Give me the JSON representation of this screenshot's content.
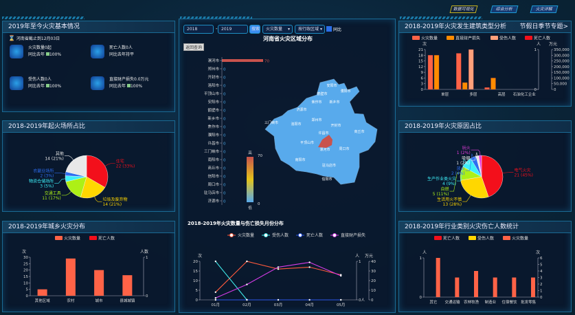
{
  "nav": [
    "数据可视化",
    "综合分析",
    "火灾详解"
  ],
  "basic": {
    "title": "2019年至今火灾基本情况",
    "note": "河南省截止到12月03日",
    "items": [
      {
        "icon": "fire-icon",
        "label": "火灾数量0起",
        "compare": "同比去年",
        "pct": "100%"
      },
      {
        "icon": "skull-icon",
        "label": "死亡人数0人",
        "compare": "同比去年持平",
        "pct": ""
      },
      {
        "icon": "injured-person-icon",
        "label": "受伤人数0人",
        "compare": "同比去年",
        "pct": "100%"
      },
      {
        "icon": "money-loss-icon",
        "label": "直接财产损失0.0万元",
        "compare": "同比去年",
        "pct": "100%"
      }
    ]
  },
  "place": {
    "title": "2018-2019年起火场所占比",
    "chart_data": {
      "type": "pie",
      "slices": [
        {
          "name": "住宅",
          "value": 22,
          "pct": "33%",
          "color": "#f30f1b"
        },
        {
          "name": "垃圾及废弃物",
          "value": 14,
          "pct": "21%",
          "color": "#ffd700"
        },
        {
          "name": "交通工具",
          "value": 11,
          "pct": "17%",
          "color": "#adf016"
        },
        {
          "name": "物资仓储场所",
          "value": 3,
          "pct": "5%",
          "color": "#3ef0fa"
        },
        {
          "name": "农副业场所",
          "value": 2,
          "pct": "3%",
          "color": "#2d6df0"
        },
        {
          "name": "其他",
          "value": 14,
          "pct": "21%",
          "color": "#e8e8e8"
        }
      ]
    }
  },
  "rural": {
    "title": "2018-2019年城乡火灾分布",
    "chart_data": {
      "type": "bar",
      "categories": [
        "其他区域",
        "农村",
        "城市",
        "县城城镇"
      ],
      "series": [
        {
          "name": "火灾数量",
          "values": [
            5,
            29,
            20,
            16
          ],
          "color": "#ff6347"
        },
        {
          "name": "死亡人数",
          "values": [
            0,
            0,
            0,
            0
          ],
          "color": "#f30f1b"
        }
      ],
      "ylabel": "次",
      "y2label": "人数",
      "ylim": [
        0,
        30
      ],
      "yticks": [
        0,
        5,
        10,
        15,
        20,
        25,
        30
      ],
      "y2lim": [
        0,
        1
      ]
    }
  },
  "controls": {
    "from": "2018",
    "sep": "-",
    "to": "2019",
    "search": "搜索",
    "metric": "火灾数量",
    "sort": "按行政区域",
    "compare": "同比"
  },
  "map": {
    "title": "河南省火灾区域分布",
    "back": "返回查询",
    "visual_high": "高",
    "visual_low": "低",
    "max": "70",
    "min": "0",
    "cities": [
      "漯河市",
      "郑州市",
      "开封市",
      "洛阳市",
      "平顶山市",
      "安阳市",
      "鹤壁市",
      "新乡市",
      "焦作市",
      "濮阳市",
      "许昌市",
      "三门峡市",
      "南阳市",
      "商丘市",
      "信阳市",
      "周口市",
      "驻马店市",
      "济源市"
    ],
    "values": [
      70,
      0,
      0,
      0,
      0,
      0,
      0,
      0,
      0,
      0,
      0,
      0,
      0,
      0,
      0,
      0,
      0,
      0
    ],
    "map_labels": [
      "安阳市",
      "鹤壁市",
      "濮阳市",
      "焦作市",
      "新乡市",
      "济源市",
      "三门峡市",
      "洛阳市",
      "郑州市",
      "开封市",
      "商丘市",
      "许昌市",
      "平顶山市",
      "漯河市",
      "周口市",
      "南阳市",
      "驻马店市",
      "信阳市"
    ],
    "low_color": "#58aaec",
    "high_color": "#c9534d"
  },
  "monthly": {
    "title": "2018-2019年火灾数量与伤亡损失月份分布",
    "chart_data": {
      "type": "line",
      "categories": [
        "01月",
        "02月",
        "03月",
        "04月",
        "05月"
      ],
      "series": [
        {
          "name": "火灾数量",
          "axis": "次",
          "values": [
            4,
            20,
            16,
            17,
            13
          ],
          "color": "#ff5a3c"
        },
        {
          "name": "受伤人数",
          "axis": "人",
          "values": [
            1,
            0,
            null,
            null,
            null
          ],
          "color": "#3ee8e8"
        },
        {
          "name": "死亡人数",
          "axis": "人",
          "values": [
            0,
            0,
            0,
            0,
            0
          ],
          "color": "#2a56e8"
        },
        {
          "name": "直接财产损失",
          "axis": "万元",
          "values": [
            2,
            16,
            34,
            39,
            25
          ],
          "color": "#d63ce8"
        }
      ],
      "ylabel": "次",
      "y2label": "人",
      "y3label": "万元",
      "ylim": [
        0,
        20
      ],
      "yticks": [
        0,
        5,
        10,
        15,
        20
      ],
      "y2lim": [
        0,
        1
      ],
      "y3lim": [
        0,
        40
      ],
      "y3ticks": [
        0,
        10,
        20,
        30,
        40
      ],
      "y2ticklabels": [
        "0人",
        "1"
      ]
    }
  },
  "building": {
    "title": "2018-2019年火灾发生建筑类型分析",
    "link": "节假日季节专题>",
    "chart_data": {
      "type": "bar",
      "categories": [
        "单层",
        "多层",
        "高层",
        "石油化工企业"
      ],
      "series": [
        {
          "name": "火灾数量",
          "axis": "次",
          "values": [
            18,
            19,
            1,
            0
          ],
          "color": "#ff6347"
        },
        {
          "name": "直接财产损失",
          "axis": "万元",
          "values": [
            300000,
            60000,
            100000,
            0
          ],
          "color": "#ff8c00"
        },
        {
          "name": "受伤人数",
          "axis": "人",
          "values": [
            0,
            1,
            0,
            0
          ],
          "color": "#ffa07a"
        },
        {
          "name": "死亡人数",
          "axis": "人",
          "values": [
            0,
            0,
            0,
            0
          ],
          "color": "#f30f1b"
        }
      ],
      "ylabel": "次",
      "y2label": "人",
      "y3label": "万元",
      "ylim": [
        0,
        21
      ],
      "yticks": [
        0,
        3,
        6,
        9,
        12,
        15,
        18,
        21
      ],
      "y2lim": [
        0,
        1
      ],
      "y3lim": [
        0,
        350000
      ],
      "y3ticks": [
        "0",
        "50,000",
        "100,000",
        "150,000",
        "200,000",
        "250,000",
        "300,000",
        "350,000"
      ]
    }
  },
  "cause": {
    "title": "2018-2019年火灾原因占比",
    "chart_data": {
      "type": "pie",
      "slices": [
        {
          "name": "电气火灾",
          "value": 21,
          "pct": "45%",
          "color": "#f30f1b"
        },
        {
          "name": "生活用火不慎",
          "value": 13,
          "pct": "28%",
          "color": "#ffd700"
        },
        {
          "name": "自燃",
          "value": 5,
          "pct": "11%",
          "color": "#adf016"
        },
        {
          "name": "生产作业类火灾",
          "value": 4,
          "pct": "9%",
          "color": "#3ef0fa"
        },
        {
          "name": "放火",
          "value": 2,
          "pct": "4%",
          "color": "#2d6df0"
        },
        {
          "name": "吸烟",
          "value": 1,
          "pct": "2%",
          "color": "#e8e8e8"
        },
        {
          "name": "玩火",
          "value": 1,
          "pct": "2%",
          "color": "#e83ce0"
        }
      ]
    }
  },
  "industry": {
    "title": "2018-2019年行业类别火灾伤亡人数统计",
    "chart_data": {
      "type": "bar",
      "categories": [
        "其它",
        "交通运输",
        "农林牧渔",
        "制造业",
        "住宿餐饮",
        "批发零售"
      ],
      "series": [
        {
          "name": "死亡人数",
          "axis": "人",
          "values": [
            0,
            0,
            0,
            0,
            0,
            0
          ],
          "color": "#f30f1b"
        },
        {
          "name": "受伤人数",
          "axis": "人",
          "values": [
            0,
            0,
            0,
            0,
            0,
            0
          ],
          "color": "#ffd700"
        },
        {
          "name": "火灾数量",
          "axis": "次",
          "values": [
            6,
            3,
            4,
            3,
            3,
            3
          ],
          "color": "#ff6347"
        }
      ],
      "ylabel": "人",
      "y2label": "次",
      "ylim": [
        0,
        1
      ],
      "y2lim": [
        0,
        6
      ],
      "y2ticks": [
        0,
        1,
        2,
        3,
        4,
        5,
        6
      ]
    }
  }
}
